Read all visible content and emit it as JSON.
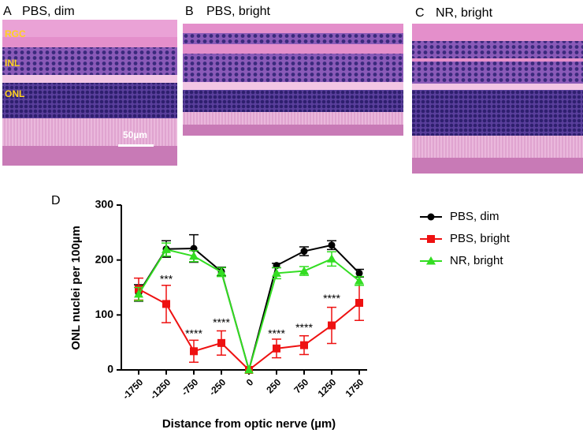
{
  "panels": [
    {
      "label": "A",
      "title": "PBS, dim",
      "layers": [
        "RGC",
        "INL",
        "ONL"
      ],
      "scale": "50µm"
    },
    {
      "label": "B",
      "title": "PBS, bright"
    },
    {
      "label": "C",
      "title": "NR, bright"
    }
  ],
  "chart_data": {
    "type": "line",
    "panel_label": "D",
    "xlabel": "Distance from optic nerve (µm)",
    "ylabel": "ONL nuclei per 100µm",
    "categories": [
      "-1750",
      "-1250",
      "-750",
      "-250",
      "0",
      "250",
      "750",
      "1250",
      "1750"
    ],
    "ylim": [
      0,
      300
    ],
    "yticks": [
      0,
      100,
      200,
      300
    ],
    "legend": "right",
    "series": [
      {
        "name": "PBS, dim",
        "color": "#000000",
        "marker": "circle",
        "values": [
          140,
          220,
          221,
          179,
          0,
          190,
          216,
          227,
          176
        ],
        "errors": [
          15,
          15,
          25,
          8,
          0,
          4,
          8,
          8,
          7
        ]
      },
      {
        "name": "PBS, bright",
        "color": "#ee1111",
        "marker": "square",
        "values": [
          147,
          120,
          34,
          49,
          0,
          39,
          45,
          81,
          122
        ],
        "errors": [
          20,
          34,
          20,
          22,
          0,
          17,
          17,
          33,
          32
        ]
      },
      {
        "name": "NR, bright",
        "color": "#33dd22",
        "marker": "triangle",
        "values": [
          138,
          219,
          207,
          178,
          0,
          176,
          180,
          202,
          162
        ],
        "errors": [
          12,
          12,
          10,
          8,
          0,
          10,
          8,
          13,
          8
        ]
      }
    ],
    "annotations": [
      {
        "text": "***",
        "x": "-1250",
        "y": 164
      },
      {
        "text": "****",
        "x": "-750",
        "y": 65
      },
      {
        "text": "****",
        "x": "-250",
        "y": 85
      },
      {
        "text": "****",
        "x": "250",
        "y": 65
      },
      {
        "text": "****",
        "x": "750",
        "y": 76
      },
      {
        "text": "****",
        "x": "1250",
        "y": 129
      }
    ]
  }
}
